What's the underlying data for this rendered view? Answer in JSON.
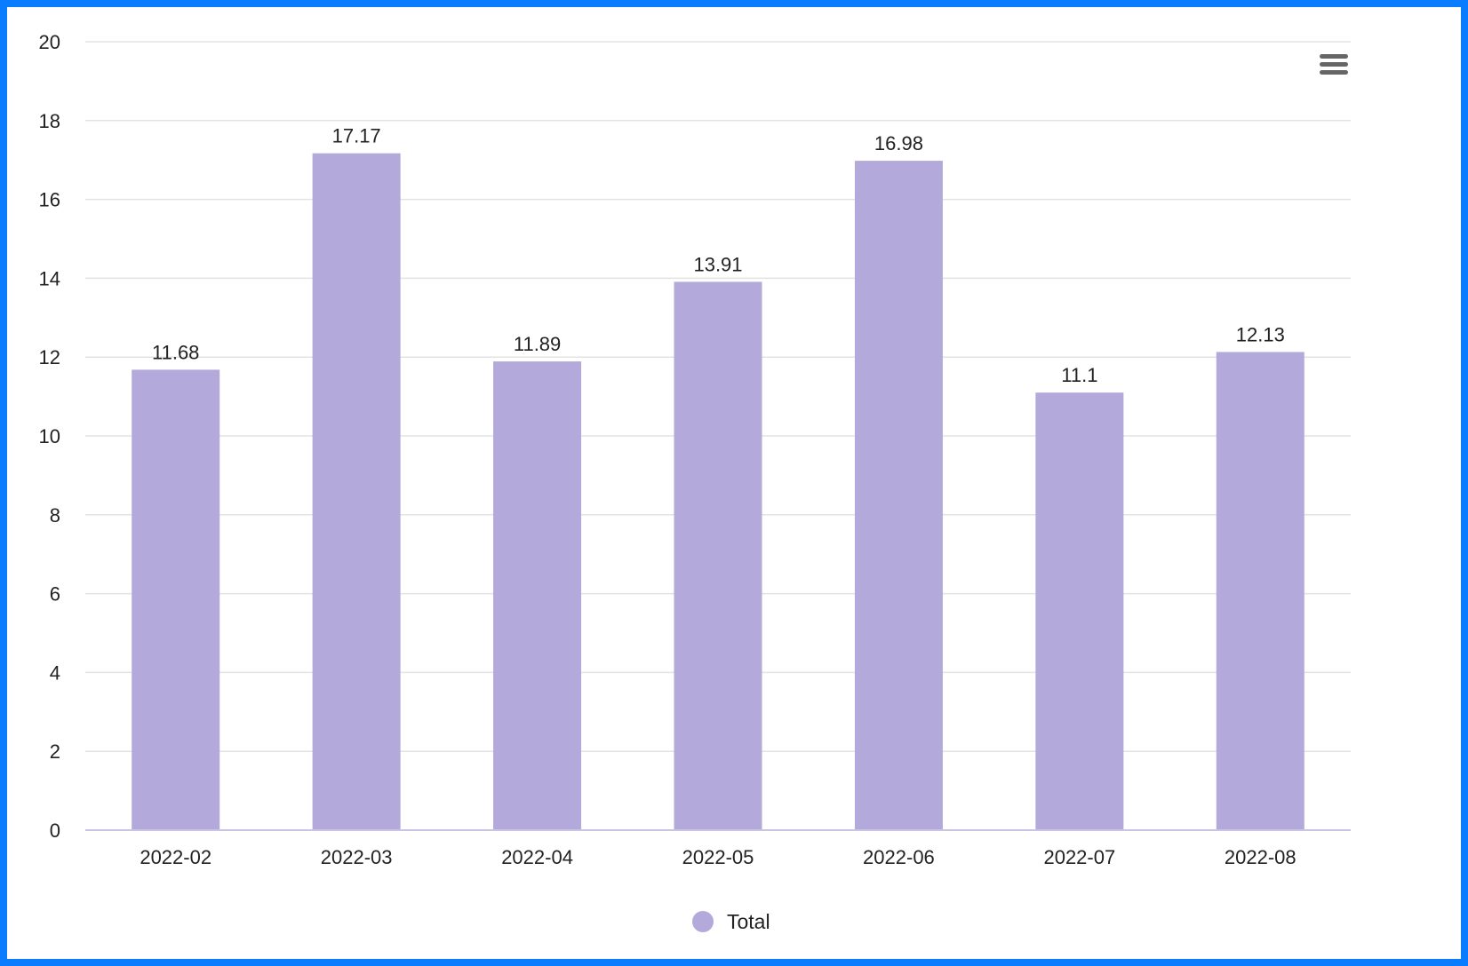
{
  "colors": {
    "frame": "#0a7cff",
    "bar": "#b3a9da",
    "grid": "#e3e3e3",
    "axis": "#c9c4e6",
    "text": "#222222",
    "menu_icon": "#666666"
  },
  "icons": {
    "menu": "hamburger-menu-icon",
    "legend_marker": "circle"
  },
  "chart_data": {
    "type": "bar",
    "title": "",
    "xlabel": "",
    "ylabel": "",
    "categories": [
      "2022-02",
      "2022-03",
      "2022-04",
      "2022-05",
      "2022-06",
      "2022-07",
      "2022-08"
    ],
    "series": [
      {
        "name": "Total",
        "values": [
          11.68,
          17.17,
          11.89,
          13.91,
          16.98,
          11.1,
          12.13
        ],
        "labels": [
          "11.68",
          "17.17",
          "11.89",
          "13.91",
          "16.98",
          "11.1",
          "12.13"
        ]
      }
    ],
    "ylim": [
      0,
      20
    ],
    "yticks": [
      0,
      2,
      4,
      6,
      8,
      10,
      12,
      14,
      16,
      18,
      20
    ],
    "grid": true,
    "data_labels": true,
    "legend": {
      "position": "bottom-center",
      "items": [
        "Total"
      ]
    }
  }
}
